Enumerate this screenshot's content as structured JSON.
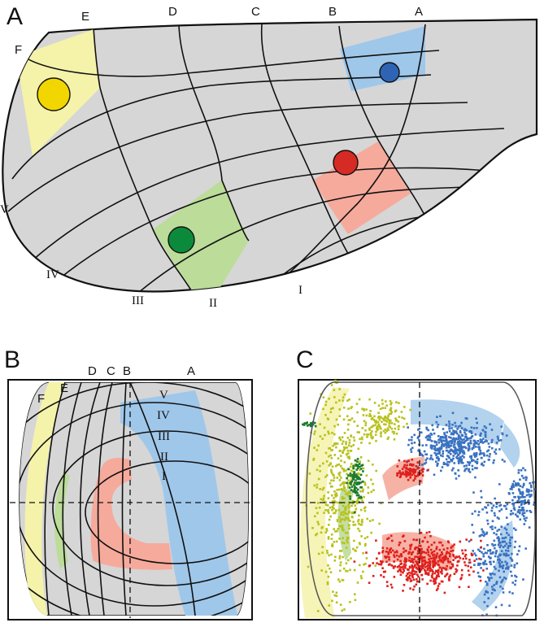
{
  "panels": {
    "a": {
      "label": "A",
      "col_labels": [
        "A",
        "B",
        "C",
        "D",
        "E",
        "F"
      ],
      "row_labels": [
        "I",
        "II",
        "III",
        "IV",
        "V"
      ]
    },
    "b": {
      "label": "B",
      "col_labels": [
        "A",
        "B",
        "C",
        "D",
        "E",
        "F"
      ],
      "ring_labels": [
        "I",
        "II",
        "III",
        "IV",
        "V"
      ]
    },
    "c": {
      "label": "C"
    }
  },
  "colors": {
    "yellow": "#f5f2aa",
    "blue": "#9fc7ea",
    "red": "#f6aa9c",
    "green": "#bcdc99",
    "gray": "#d6d6d6",
    "dot_yellow": "#f2d600",
    "dot_blue": "#2f64b4",
    "dot_red": "#d62a24",
    "dot_green": "#0c8a3c",
    "scatter_yellow": "#b8c21c",
    "scatter_blue": "#3a72c0",
    "scatter_red": "#e0201c",
    "scatter_green": "#1a7a2e"
  }
}
